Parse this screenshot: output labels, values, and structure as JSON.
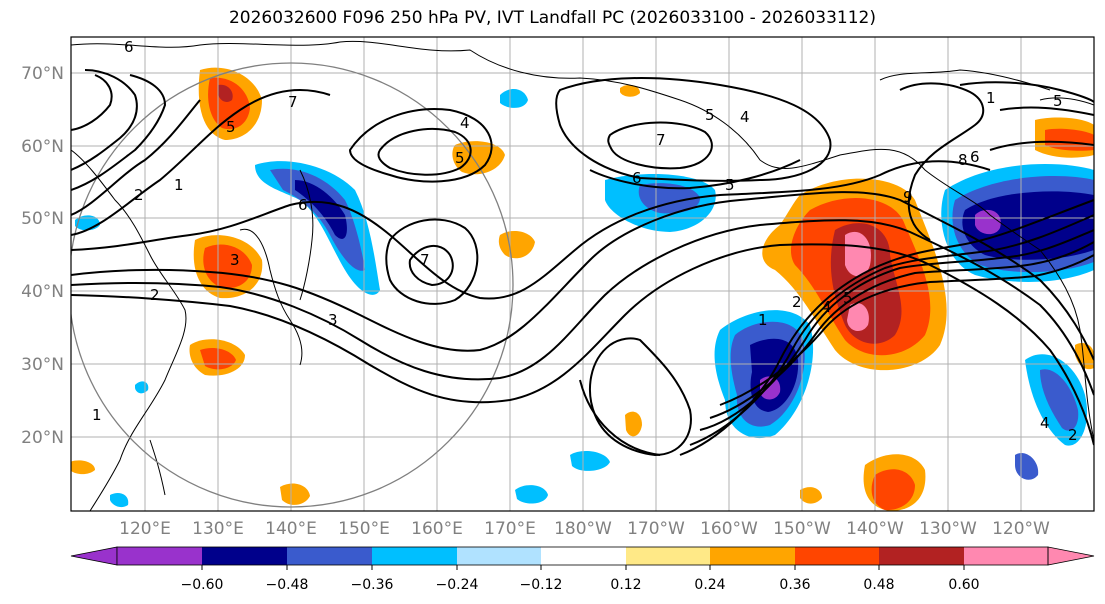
{
  "title": "2026032600 F096 250 hPa PV, IVT Landfall PC (2026033100 - 2026033112)",
  "map": {
    "lat_ticks": [
      "70°N",
      "60°N",
      "50°N",
      "40°N",
      "30°N",
      "20°N"
    ],
    "lon_ticks": [
      "120°E",
      "130°E",
      "140°E",
      "150°E",
      "160°E",
      "170°E",
      "180°W",
      "170°W",
      "160°W",
      "150°W",
      "140°W",
      "130°W",
      "120°W"
    ],
    "contour_labels": [
      "6",
      "5",
      "1",
      "2",
      "7",
      "4",
      "5",
      "6",
      "7",
      "3",
      "2",
      "1",
      "6",
      "5",
      "5",
      "4",
      "7",
      "3",
      "1",
      "2",
      "4",
      "5",
      "8",
      "9",
      "6",
      "5",
      "1",
      "2",
      "4"
    ]
  },
  "colorbar": {
    "tick_labels": [
      "−0.60",
      "−0.48",
      "−0.36",
      "−0.24",
      "−0.12",
      "0.12",
      "0.24",
      "0.36",
      "0.48",
      "0.60"
    ],
    "colors": [
      "#9932cc",
      "#00008b",
      "#3a5bcd",
      "#00bfff",
      "#b0e2ff",
      "#ffffff",
      "#ffe987",
      "#ffa500",
      "#ff4500",
      "#b22222",
      "#ff88b0",
      "#ff88b0"
    ]
  }
}
